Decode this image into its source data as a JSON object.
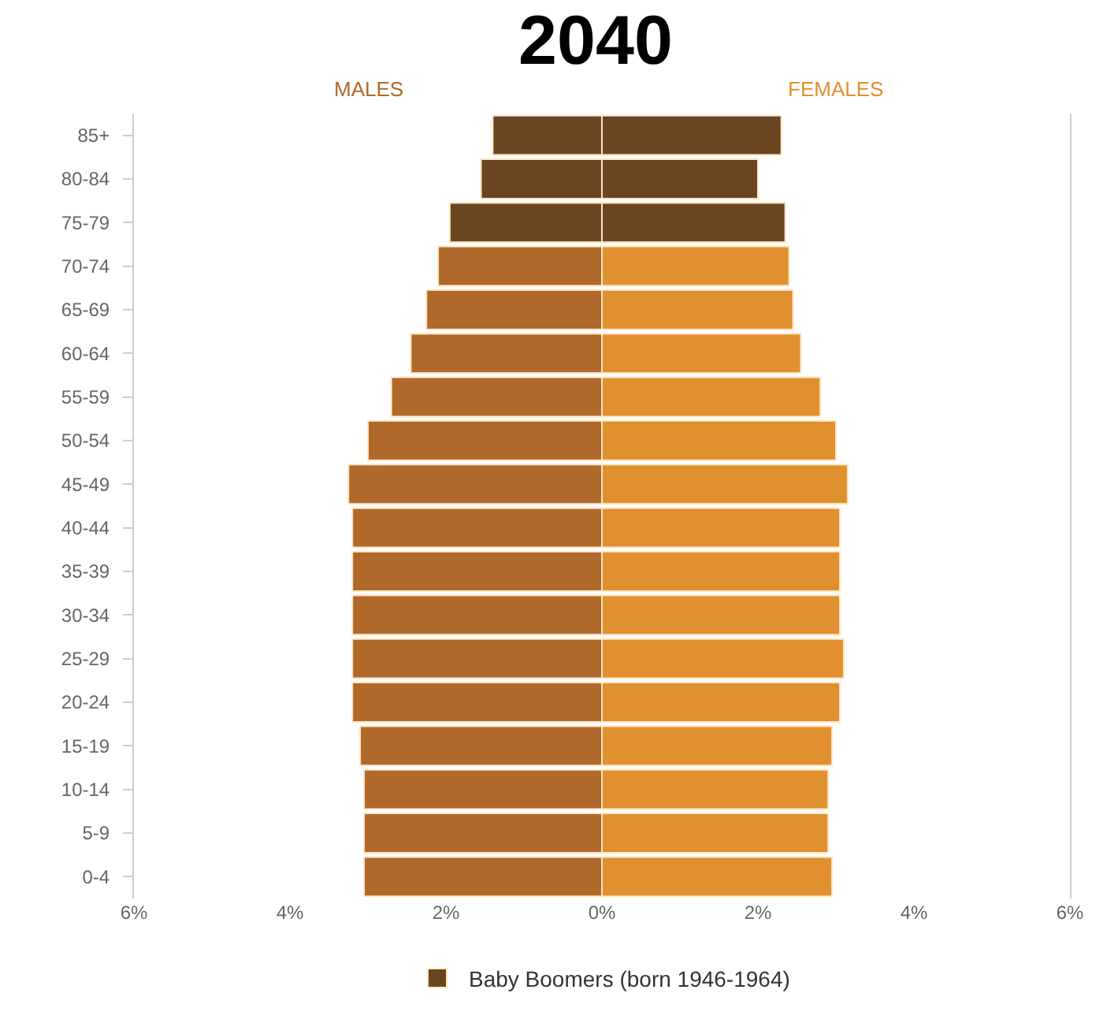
{
  "chart_data": {
    "type": "bar",
    "orientation": "horizontal",
    "stacked": true,
    "title": "2040",
    "categories": [
      "85+",
      "80-84",
      "75-79",
      "70-74",
      "65-69",
      "60-64",
      "55-59",
      "50-54",
      "45-49",
      "40-44",
      "35-39",
      "30-34",
      "25-29",
      "20-24",
      "15-19",
      "10-14",
      "5-9",
      "0-4"
    ],
    "series": [
      {
        "name": "MALES",
        "color": "#b0692a",
        "values": [
          null,
          null,
          null,
          -2.1,
          -2.25,
          -2.45,
          -2.7,
          -3.0,
          -3.25,
          -3.2,
          -3.2,
          -3.2,
          -3.2,
          -3.2,
          -3.1,
          -3.05,
          -3.05,
          -3.05
        ]
      },
      {
        "name": "FEMALES",
        "color": "#e0902e",
        "values": [
          null,
          null,
          null,
          2.4,
          2.45,
          2.55,
          2.8,
          3.0,
          3.15,
          3.05,
          3.05,
          3.05,
          3.1,
          3.05,
          2.95,
          2.9,
          2.9,
          2.95
        ]
      },
      {
        "name": "Baby Boomers (born 1946-1964)",
        "color": "#6b4420",
        "values": [
          -1.4,
          -1.55,
          -1.95,
          null,
          null,
          null,
          null,
          null,
          null,
          null,
          null,
          null,
          null,
          null,
          null,
          null,
          null,
          null
        ]
      },
      {
        "color": "#6b4420",
        "values": [
          2.3,
          2.0,
          2.35,
          null,
          null,
          null,
          null,
          null,
          null,
          null,
          null,
          null,
          null,
          null,
          null,
          null,
          null,
          null
        ]
      }
    ],
    "xlim": [
      -6,
      6
    ],
    "xticks": [
      {
        "value": -6,
        "label": "6%"
      },
      {
        "value": -4,
        "label": "4%"
      },
      {
        "value": -2,
        "label": "2%"
      },
      {
        "value": 0,
        "label": "0%"
      },
      {
        "value": 2,
        "label": "2%"
      },
      {
        "value": 4,
        "label": "4%"
      },
      {
        "value": 6,
        "label": "6%"
      }
    ],
    "legend": "bottom"
  }
}
